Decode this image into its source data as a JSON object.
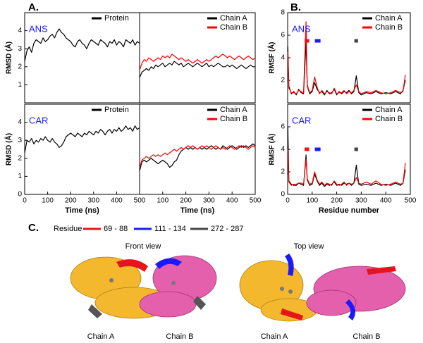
{
  "panel_labels": [
    "A.",
    "B.",
    "C."
  ],
  "chart_data": [
    {
      "type": "line",
      "annotation": "ANS",
      "ylabel": "RMSD (Å)",
      "xlim": [
        0,
        500
      ],
      "ylim": [
        0,
        5
      ],
      "yticks": [
        1,
        2,
        3,
        4
      ],
      "legend": "upper right",
      "x": [
        0,
        10,
        20,
        30,
        40,
        50,
        60,
        70,
        80,
        90,
        100,
        110,
        120,
        130,
        140,
        150,
        160,
        170,
        180,
        190,
        200,
        210,
        220,
        230,
        240,
        250,
        260,
        270,
        280,
        290,
        300,
        310,
        320,
        330,
        340,
        350,
        360,
        370,
        380,
        390,
        400,
        410,
        420,
        430,
        440,
        450,
        460,
        470,
        480,
        490,
        500
      ],
      "series": [
        {
          "name": "Protein",
          "color": "#000000",
          "values": [
            2.3,
            2.9,
            3.1,
            2.8,
            3.3,
            3.5,
            3.4,
            3.3,
            3.6,
            3.4,
            3.5,
            3.7,
            3.8,
            3.6,
            3.9,
            4.1,
            3.9,
            3.8,
            3.6,
            3.5,
            3.4,
            3.2,
            3.1,
            3.4,
            3.5,
            3.3,
            3.2,
            3.0,
            3.3,
            3.5,
            3.4,
            3.3,
            3.2,
            3.5,
            3.4,
            3.3,
            3.1,
            3.4,
            3.3,
            3.5,
            3.2,
            3.4,
            3.3,
            3.1,
            3.5,
            3.4,
            3.3,
            3.5,
            3.2,
            3.4,
            3.3
          ]
        }
      ]
    },
    {
      "type": "line",
      "xlim": [
        0,
        500
      ],
      "ylim": [
        0,
        5
      ],
      "legend": "upper right",
      "x": [
        0,
        10,
        20,
        30,
        40,
        50,
        60,
        70,
        80,
        90,
        100,
        110,
        120,
        130,
        140,
        150,
        160,
        170,
        180,
        190,
        200,
        210,
        220,
        230,
        240,
        250,
        260,
        270,
        280,
        290,
        300,
        310,
        320,
        330,
        340,
        350,
        360,
        370,
        380,
        390,
        400,
        410,
        420,
        430,
        440,
        450,
        460,
        470,
        480,
        490,
        500
      ],
      "series": [
        {
          "name": "Chain A",
          "color": "#000000",
          "values": [
            1.4,
            1.7,
            1.8,
            1.9,
            1.8,
            2.0,
            1.9,
            2.1,
            2.0,
            2.1,
            2.2,
            2.0,
            2.1,
            2.2,
            2.1,
            2.3,
            2.2,
            2.1,
            2.2,
            2.0,
            2.1,
            2.2,
            2.1,
            2.0,
            2.1,
            2.2,
            2.1,
            2.0,
            2.1,
            2.2,
            2.0,
            2.1,
            2.0,
            2.1,
            2.2,
            2.1,
            2.0,
            2.0,
            2.1,
            2.0,
            2.1,
            2.0,
            1.9,
            2.0,
            2.1,
            2.0,
            1.9,
            2.0,
            2.1,
            2.0,
            2.0
          ]
        },
        {
          "name": "Chain B",
          "color": "#ff0000",
          "values": [
            1.8,
            2.2,
            2.4,
            2.3,
            2.5,
            2.4,
            2.3,
            2.4,
            2.5,
            2.4,
            2.6,
            2.5,
            2.6,
            2.5,
            2.7,
            2.6,
            2.5,
            2.4,
            2.5,
            2.4,
            2.3,
            2.4,
            2.3,
            2.2,
            2.3,
            2.4,
            2.3,
            2.2,
            2.3,
            2.4,
            2.3,
            2.4,
            2.5,
            2.6,
            2.5,
            2.6,
            2.7,
            2.6,
            2.5,
            2.6,
            2.5,
            2.4,
            2.5,
            2.6,
            2.5,
            2.4,
            2.5,
            2.6,
            2.5,
            2.4,
            2.5
          ]
        }
      ]
    },
    {
      "type": "line",
      "annotation": "ANS",
      "ylabel": "RMSF (Å)",
      "xlim": [
        0,
        500
      ],
      "ylim": [
        0,
        8
      ],
      "yticks": [
        2,
        4,
        6,
        8
      ],
      "legend": "upper right",
      "x": [
        1,
        5,
        15,
        25,
        35,
        45,
        55,
        65,
        75,
        80,
        90,
        100,
        110,
        120,
        130,
        140,
        150,
        160,
        170,
        180,
        190,
        200,
        210,
        220,
        230,
        240,
        250,
        260,
        270,
        280,
        290,
        300,
        320,
        340,
        360,
        380,
        400,
        420,
        440,
        460,
        470,
        480
      ],
      "series": [
        {
          "name": "Chain A",
          "color": "#000000",
          "values": [
            5.0,
            1.5,
            0.8,
            1.0,
            0.7,
            1.2,
            0.9,
            0.8,
            5.4,
            1.5,
            0.8,
            1.0,
            1.8,
            1.2,
            0.9,
            1.0,
            0.7,
            1.1,
            0.8,
            0.9,
            1.2,
            0.7,
            1.0,
            0.8,
            1.0,
            0.9,
            1.1,
            0.8,
            1.0,
            2.4,
            0.9,
            0.7,
            0.9,
            0.8,
            1.0,
            0.8,
            0.9,
            0.8,
            1.0,
            0.8,
            1.1,
            2.0
          ]
        },
        {
          "name": "Chain B",
          "color": "#ff0000",
          "values": [
            4.5,
            1.3,
            0.9,
            0.9,
            0.8,
            1.1,
            1.0,
            0.9,
            7.2,
            1.6,
            0.9,
            1.1,
            2.3,
            1.4,
            0.8,
            1.1,
            0.8,
            1.0,
            0.9,
            0.8,
            1.3,
            0.8,
            0.9,
            0.9,
            1.1,
            0.8,
            1.0,
            0.9,
            1.1,
            1.6,
            1.0,
            0.8,
            1.0,
            0.9,
            1.1,
            0.9,
            0.8,
            0.9,
            1.1,
            0.9,
            1.0,
            2.5
          ]
        }
      ],
      "highlights": [
        {
          "start": 69,
          "end": 88,
          "level": 5.5,
          "color": "#e8141c"
        },
        {
          "start": 111,
          "end": 134,
          "level": 5.5,
          "color": "#1a1aff"
        },
        {
          "start": 272,
          "end": 287,
          "level": 5.5,
          "color": "#444444"
        }
      ]
    },
    {
      "type": "line",
      "annotation": "CAR",
      "ylabel": "RMSD (Å)",
      "xlabel": "Time (ns)",
      "xlim": [
        0,
        500
      ],
      "ylim": [
        0,
        5
      ],
      "xticks": [
        0,
        100,
        200,
        300,
        400,
        500
      ],
      "yticks": [
        0,
        1,
        2,
        3,
        4
      ],
      "legend": "upper right",
      "x": [
        0,
        10,
        20,
        30,
        40,
        50,
        60,
        70,
        80,
        90,
        100,
        110,
        120,
        130,
        140,
        150,
        160,
        170,
        180,
        190,
        200,
        210,
        220,
        230,
        240,
        250,
        260,
        270,
        280,
        290,
        300,
        310,
        320,
        330,
        340,
        350,
        360,
        370,
        380,
        390,
        400,
        410,
        420,
        430,
        440,
        450,
        460,
        470,
        480,
        490,
        500
      ],
      "series": [
        {
          "name": "Protein",
          "color": "#000000",
          "values": [
            2.3,
            3.0,
            2.9,
            3.1,
            2.8,
            3.0,
            2.9,
            3.1,
            3.0,
            3.2,
            3.0,
            2.9,
            3.1,
            2.9,
            2.8,
            2.6,
            2.7,
            2.9,
            3.2,
            3.3,
            3.4,
            3.3,
            3.2,
            3.4,
            3.3,
            3.2,
            3.4,
            3.3,
            3.5,
            3.4,
            3.3,
            3.5,
            3.4,
            3.6,
            3.5,
            3.3,
            3.5,
            3.6,
            3.4,
            3.6,
            3.5,
            3.7,
            3.5,
            3.6,
            3.8,
            3.6,
            3.7,
            3.5,
            3.8,
            3.6,
            3.7
          ]
        }
      ]
    },
    {
      "type": "line",
      "xlabel": "Time (ns)",
      "xlim": [
        0,
        500
      ],
      "ylim": [
        0,
        5
      ],
      "xticks": [
        100,
        200,
        300,
        400,
        500
      ],
      "legend": "upper right",
      "x": [
        0,
        10,
        20,
        30,
        40,
        50,
        60,
        70,
        80,
        90,
        100,
        110,
        120,
        130,
        140,
        150,
        160,
        170,
        180,
        190,
        200,
        210,
        220,
        230,
        240,
        250,
        260,
        270,
        280,
        290,
        300,
        310,
        320,
        330,
        340,
        350,
        360,
        370,
        380,
        390,
        400,
        410,
        420,
        430,
        440,
        450,
        460,
        470,
        480,
        490,
        500
      ],
      "series": [
        {
          "name": "Chain A",
          "color": "#000000",
          "values": [
            1.3,
            1.8,
            1.9,
            1.8,
            1.9,
            2.0,
            1.9,
            1.8,
            1.7,
            1.8,
            1.9,
            1.8,
            1.7,
            1.5,
            1.6,
            1.8,
            1.9,
            2.2,
            2.4,
            2.5,
            2.6,
            2.5,
            2.6,
            2.5,
            2.6,
            2.5,
            2.6,
            2.5,
            2.6,
            2.5,
            2.6,
            2.7,
            2.6,
            2.5,
            2.6,
            2.5,
            2.7,
            2.6,
            2.5,
            2.6,
            2.7,
            2.6,
            2.5,
            2.6,
            2.7,
            2.6,
            2.7,
            2.6,
            2.7,
            2.8,
            2.7
          ]
        },
        {
          "name": "Chain B",
          "color": "#ff0000",
          "values": [
            1.5,
            1.9,
            2.0,
            2.1,
            2.0,
            2.1,
            2.2,
            2.1,
            2.2,
            2.1,
            2.2,
            2.3,
            2.2,
            2.3,
            2.4,
            2.5,
            2.4,
            2.5,
            2.6,
            2.5,
            2.6,
            2.7,
            2.6,
            2.7,
            2.6,
            2.5,
            2.6,
            2.7,
            2.6,
            2.7,
            2.6,
            2.5,
            2.6,
            2.7,
            2.6,
            2.5,
            2.6,
            2.5,
            2.6,
            2.7,
            2.6,
            2.5,
            2.6,
            2.7,
            2.6,
            2.7,
            2.6,
            2.5,
            2.6,
            2.7,
            2.6
          ]
        }
      ]
    },
    {
      "type": "line",
      "annotation": "CAR",
      "ylabel": "RMSF (Å)",
      "xlabel": "Residue number",
      "xlim": [
        0,
        500
      ],
      "ylim": [
        0,
        8
      ],
      "xticks": [
        0,
        100,
        200,
        300,
        400,
        500
      ],
      "yticks": [
        0,
        2,
        4,
        6
      ],
      "legend": "upper right",
      "x": [
        1,
        5,
        15,
        25,
        35,
        45,
        55,
        65,
        75,
        80,
        90,
        100,
        110,
        120,
        130,
        140,
        150,
        160,
        170,
        180,
        190,
        200,
        210,
        220,
        230,
        240,
        250,
        260,
        270,
        280,
        290,
        300,
        320,
        340,
        360,
        380,
        400,
        420,
        440,
        460,
        470,
        480
      ],
      "series": [
        {
          "name": "Chain A",
          "color": "#000000",
          "values": [
            6.0,
            1.2,
            0.9,
            0.8,
            0.8,
            1.0,
            0.9,
            0.8,
            3.5,
            1.3,
            0.8,
            0.9,
            1.8,
            1.2,
            0.8,
            1.0,
            0.7,
            0.9,
            0.8,
            0.9,
            1.1,
            0.8,
            0.9,
            0.8,
            1.0,
            0.9,
            1.0,
            0.8,
            1.0,
            2.6,
            0.9,
            0.8,
            0.9,
            0.8,
            1.0,
            0.8,
            0.9,
            0.8,
            1.0,
            0.8,
            1.0,
            2.2
          ]
        },
        {
          "name": "Chain B",
          "color": "#ff0000",
          "values": [
            4.0,
            1.1,
            0.8,
            0.9,
            0.9,
            1.0,
            1.0,
            0.9,
            3.1,
            1.4,
            0.9,
            1.0,
            2.0,
            1.3,
            0.9,
            1.1,
            0.8,
            1.0,
            0.9,
            0.8,
            1.2,
            0.9,
            0.8,
            0.9,
            1.1,
            0.8,
            1.0,
            0.9,
            1.0,
            1.5,
            1.0,
            0.9,
            1.1,
            0.9,
            1.2,
            0.9,
            0.8,
            0.9,
            1.1,
            0.9,
            1.0,
            2.8
          ]
        }
      ],
      "highlights": [
        {
          "start": 69,
          "end": 88,
          "level": 4.0,
          "color": "#e8141c"
        },
        {
          "start": 111,
          "end": 134,
          "level": 4.0,
          "color": "#1a1aff"
        },
        {
          "start": 272,
          "end": 287,
          "level": 4.0,
          "color": "#444444"
        }
      ]
    }
  ],
  "panel_c": {
    "legend_title": "Residue",
    "legend": [
      {
        "label": "69 - 88",
        "color": "#e8141c"
      },
      {
        "label": "111 - 134",
        "color": "#1a1aff"
      },
      {
        "label": "272 - 287",
        "color": "#444444"
      }
    ],
    "views": [
      {
        "title": "Front view",
        "chains": [
          "Chain A",
          "Chain B"
        ]
      },
      {
        "title": "Top view",
        "chains": [
          "Chain A",
          "Chain B"
        ]
      }
    ]
  }
}
